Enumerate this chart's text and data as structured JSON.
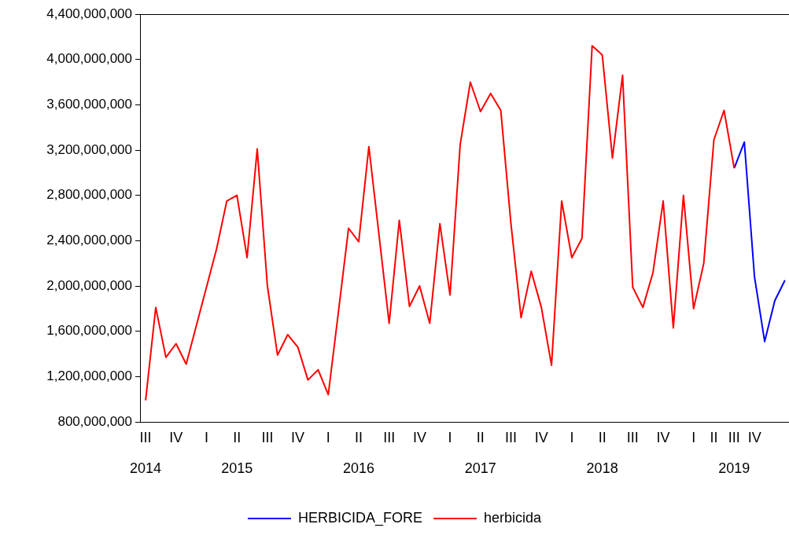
{
  "chart_data": {
    "type": "line",
    "categories": [
      "III\n2014",
      null,
      null,
      "IV",
      null,
      null,
      "I",
      null,
      null,
      "II\n2015",
      null,
      null,
      "III",
      null,
      null,
      "IV",
      null,
      null,
      "I",
      null,
      null,
      "II\n2016",
      null,
      null,
      "III",
      null,
      null,
      "IV",
      null,
      null,
      "I",
      null,
      null,
      "II\n2017",
      null,
      null,
      "III",
      null,
      null,
      "IV",
      null,
      null,
      "I",
      null,
      null,
      "II\n2018",
      null,
      null,
      "III",
      null,
      null,
      "IV",
      null,
      null,
      "I",
      null,
      "II",
      null,
      "III\n2019",
      null,
      "IV",
      null,
      null,
      null
    ],
    "series": [
      {
        "name": "HERBICIDA_FORE",
        "color": "#0000ff",
        "values": [
          null,
          null,
          null,
          null,
          null,
          null,
          null,
          null,
          null,
          null,
          null,
          null,
          null,
          null,
          null,
          null,
          null,
          null,
          null,
          null,
          null,
          null,
          null,
          null,
          null,
          null,
          null,
          null,
          null,
          null,
          null,
          null,
          null,
          null,
          null,
          null,
          null,
          null,
          null,
          null,
          null,
          null,
          null,
          null,
          null,
          null,
          null,
          null,
          null,
          null,
          null,
          null,
          null,
          null,
          null,
          null,
          null,
          null,
          3040000000,
          3270000000,
          2080000000,
          1510000000,
          1870000000,
          2050000000
        ]
      },
      {
        "name": "herbicida",
        "color": "#ff0000",
        "values": [
          990000000,
          1810000000,
          1370000000,
          1490000000,
          1310000000,
          1650000000,
          1990000000,
          2330000000,
          2750000000,
          2800000000,
          2250000000,
          3210000000,
          2000000000,
          1390000000,
          1570000000,
          1460000000,
          1170000000,
          1260000000,
          1040000000,
          1770000000,
          2510000000,
          2390000000,
          3230000000,
          2450000000,
          1670000000,
          2580000000,
          1820000000,
          2000000000,
          1670000000,
          2550000000,
          1920000000,
          3250000000,
          3800000000,
          3540000000,
          3700000000,
          3550000000,
          2550000000,
          1720000000,
          2130000000,
          1810000000,
          1300000000,
          2750000000,
          2250000000,
          2420000000,
          4120000000,
          4040000000,
          3130000000,
          3860000000,
          1990000000,
          1810000000,
          2120000000,
          2750000000,
          1630000000,
          2800000000,
          1800000000,
          2200000000,
          3290000000,
          3550000000,
          3040000000,
          null,
          null,
          null,
          null,
          null
        ]
      }
    ],
    "ylim": [
      800000000,
      4400000000
    ],
    "yticks": [
      {
        "value": 800000000,
        "label": "800,000,000"
      },
      {
        "value": 1200000000,
        "label": "1,200,000,000"
      },
      {
        "value": 1600000000,
        "label": "1,600,000,000"
      },
      {
        "value": 2000000000,
        "label": "2,000,000,000"
      },
      {
        "value": 2400000000,
        "label": "2,400,000,000"
      },
      {
        "value": 2800000000,
        "label": "2,800,000,000"
      },
      {
        "value": 3200000000,
        "label": "3,200,000,000"
      },
      {
        "value": 3600000000,
        "label": "3,600,000,000"
      },
      {
        "value": 4000000000,
        "label": "4,000,000,000"
      },
      {
        "value": 4400000000,
        "label": "4,400,000,000"
      }
    ],
    "grid": false,
    "legend": "bottom",
    "marker": "none",
    "line_style": "solid"
  }
}
